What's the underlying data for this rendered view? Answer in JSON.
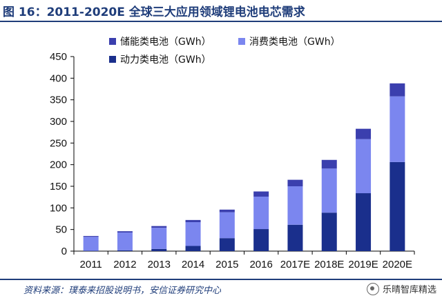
{
  "header": {
    "title": "图 16：2011-2020E 全球三大应用领域锂电池电芯需求"
  },
  "source": {
    "text": "资料来源：璞泰来招股说明书，安信证券研究中心"
  },
  "watermark": {
    "icon": "wechat-icon",
    "text": "乐晴智库精选"
  },
  "colors": {
    "power": "#1a2f8c",
    "consumer": "#7b86ef",
    "storage": "#3b3fae",
    "axis": "#000000"
  },
  "chart_data": {
    "type": "bar",
    "stacked": true,
    "title": "",
    "xlabel": "",
    "ylabel": "",
    "categories": [
      "2011",
      "2012",
      "2013",
      "2014",
      "2015",
      "2016",
      "2017E",
      "2018E",
      "2019E",
      "2020E"
    ],
    "ylim": [
      0,
      450
    ],
    "yticks": [
      0,
      50,
      100,
      150,
      200,
      250,
      300,
      350,
      400,
      450
    ],
    "grid": false,
    "legend": "top-left",
    "series": [
      {
        "name": "动力类电池（GWh）",
        "key": "power",
        "values": [
          1,
          2,
          5,
          12,
          30,
          51,
          61,
          89,
          134,
          206
        ]
      },
      {
        "name": "消费类电池（GWh）",
        "key": "consumer",
        "values": [
          32,
          41,
          49,
          55,
          60,
          75,
          89,
          102,
          125,
          152
        ]
      },
      {
        "name": "储能类电池（GWh）",
        "key": "storage",
        "values": [
          2,
          3,
          4,
          5,
          6,
          12,
          15,
          20,
          24,
          30
        ]
      }
    ]
  }
}
